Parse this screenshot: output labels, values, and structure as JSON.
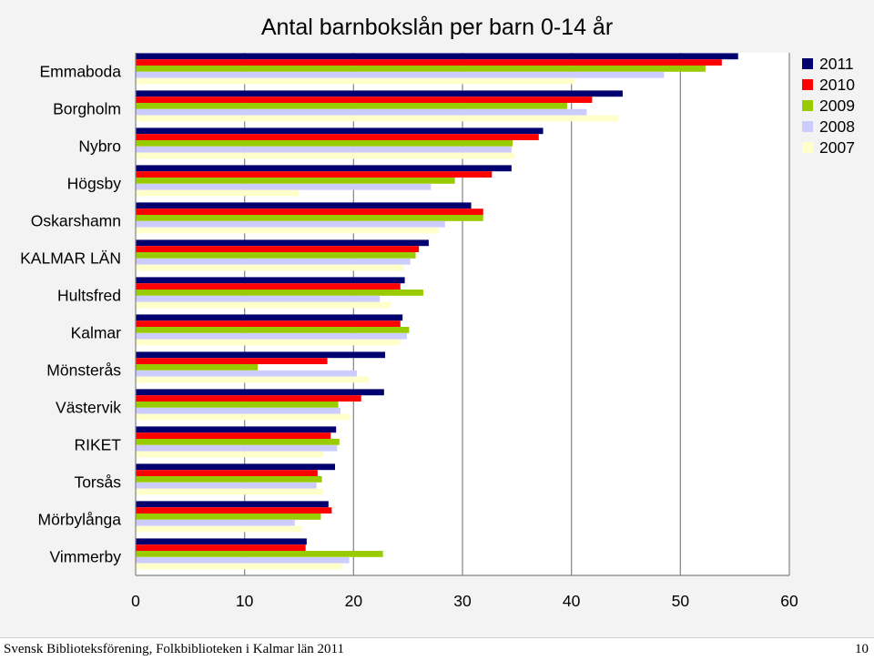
{
  "chart_data": {
    "type": "bar",
    "orientation": "horizontal",
    "title": "Antal barnbokslån per barn 0-14 år",
    "categories": [
      "Emmaboda",
      "Borgholm",
      "Nybro",
      "Högsby",
      "Oskarshamn",
      "KALMAR LÄN",
      "Hultsfred",
      "Kalmar",
      "Mönsterås",
      "Västervik",
      "RIKET",
      "Torsås",
      "Mörbylånga",
      "Vimmerby"
    ],
    "xticks": [
      "0",
      "10",
      "20",
      "30",
      "40",
      "50",
      "60"
    ],
    "xlim": [
      0,
      60
    ],
    "grid": true,
    "legend_position": "top-right",
    "series": [
      {
        "name": "2011",
        "color": "#00006e",
        "values": [
          55.3,
          44.7,
          37.4,
          34.5,
          30.8,
          26.9,
          24.7,
          24.5,
          22.9,
          22.8,
          18.4,
          18.3,
          17.7,
          15.7
        ]
      },
      {
        "name": "2010",
        "color": "#ff0000",
        "values": [
          53.8,
          41.9,
          37.0,
          32.7,
          31.9,
          26.0,
          24.3,
          24.3,
          17.6,
          20.7,
          17.9,
          16.7,
          18.0,
          15.6
        ]
      },
      {
        "name": "2009",
        "color": "#99cc00",
        "values": [
          52.3,
          39.6,
          34.6,
          29.3,
          31.9,
          25.7,
          26.4,
          25.1,
          11.2,
          18.6,
          18.7,
          17.1,
          17.0,
          22.7
        ]
      },
      {
        "name": "2008",
        "color": "#ccccff",
        "values": [
          48.5,
          41.4,
          34.5,
          27.1,
          28.4,
          25.2,
          22.4,
          24.9,
          20.3,
          18.8,
          18.5,
          16.6,
          14.6,
          19.6
        ]
      },
      {
        "name": "2007",
        "color": "#ffffcc",
        "values": [
          40.3,
          44.3,
          34.8,
          15.0,
          27.8,
          24.6,
          23.4,
          24.3,
          21.4,
          19.7,
          17.2,
          17.2,
          15.3,
          19.0
        ]
      }
    ]
  },
  "footer": {
    "left": "Svensk Biblioteksförening, Folkbiblioteken i Kalmar län 2011",
    "page_number": "10"
  }
}
